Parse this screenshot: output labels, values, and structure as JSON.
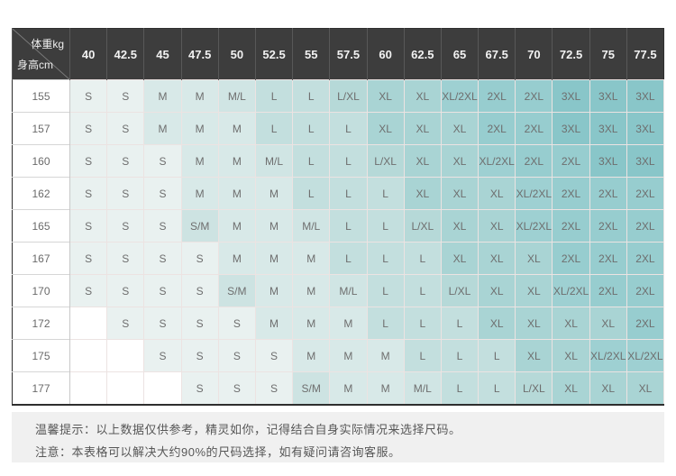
{
  "palette": {
    "header_bg": "#3d3d3d",
    "header_text": "#f2f2f2",
    "diagonal_line": "#7a7a7a",
    "grid_line": "#ece3e2",
    "notes_bg": "#f0f0f0",
    "size_colors": {
      "": "#ffffff",
      "S": "#e9f1f0",
      "S/M": "#cde3e2",
      "M": "#d8e9e8",
      "M/L": "#d0e5e4",
      "L": "#c3dfde",
      "L/XL": "#b6d9d8",
      "XL": "#a9d4d4",
      "XL/2XL": "#9ed0d2",
      "2XL": "#97cdcf",
      "3XL": "#89c6c9"
    }
  },
  "chart_data": {
    "type": "table",
    "corner": {
      "top_right": "体重kg",
      "bottom_left": "身高cm"
    },
    "columns": [
      "40",
      "42.5",
      "45",
      "47.5",
      "50",
      "52.5",
      "55",
      "57.5",
      "60",
      "62.5",
      "65",
      "67.5",
      "70",
      "72.5",
      "75",
      "77.5"
    ],
    "rows": [
      {
        "height": "155",
        "sizes": [
          "S",
          "S",
          "M",
          "M",
          "M/L",
          "L",
          "L",
          "L/XL",
          "XL",
          "XL",
          "XL/2XL",
          "2XL",
          "2XL",
          "3XL",
          "3XL",
          "3XL"
        ]
      },
      {
        "height": "157",
        "sizes": [
          "S",
          "S",
          "M",
          "M",
          "M",
          "L",
          "L",
          "L",
          "XL",
          "XL",
          "XL",
          "2XL",
          "2XL",
          "3XL",
          "3XL",
          "3XL"
        ]
      },
      {
        "height": "160",
        "sizes": [
          "S",
          "S",
          "S",
          "M",
          "M",
          "M/L",
          "L",
          "L",
          "L/XL",
          "XL",
          "XL",
          "XL/2XL",
          "2XL",
          "2XL",
          "3XL",
          "3XL"
        ]
      },
      {
        "height": "162",
        "sizes": [
          "S",
          "S",
          "S",
          "M",
          "M",
          "M",
          "L",
          "L",
          "L",
          "XL",
          "XL",
          "XL",
          "XL/2XL",
          "2XL",
          "2XL",
          "2XL"
        ]
      },
      {
        "height": "165",
        "sizes": [
          "S",
          "S",
          "S",
          "S/M",
          "M",
          "M",
          "M/L",
          "L",
          "L",
          "L/XL",
          "XL",
          "XL",
          "XL/2XL",
          "2XL",
          "2XL",
          "2XL"
        ]
      },
      {
        "height": "167",
        "sizes": [
          "S",
          "S",
          "S",
          "S",
          "M",
          "M",
          "M",
          "L",
          "L",
          "L",
          "XL",
          "XL",
          "XL",
          "2XL",
          "2XL",
          "2XL"
        ]
      },
      {
        "height": "170",
        "sizes": [
          "S",
          "S",
          "S",
          "S",
          "S/M",
          "M",
          "M",
          "M/L",
          "L",
          "L",
          "L/XL",
          "XL",
          "XL",
          "XL/2XL",
          "2XL",
          "2XL"
        ]
      },
      {
        "height": "172",
        "sizes": [
          "",
          "S",
          "S",
          "S",
          "S",
          "M",
          "M",
          "M",
          "L",
          "L",
          "L",
          "XL",
          "XL",
          "XL",
          "XL",
          "2XL"
        ]
      },
      {
        "height": "175",
        "sizes": [
          "",
          "",
          "S",
          "S",
          "S",
          "S",
          "M",
          "M",
          "M",
          "L",
          "L",
          "L",
          "XL",
          "XL",
          "XL/2XL",
          "XL/2XL"
        ]
      },
      {
        "height": "177",
        "sizes": [
          "",
          "",
          "",
          "S",
          "S",
          "S",
          "S/M",
          "M",
          "M",
          "M/L",
          "L",
          "L",
          "L/XL",
          "XL",
          "XL",
          "XL"
        ]
      }
    ]
  },
  "notes": {
    "line1": "温馨提示：以上数据仅供参考，精灵如你，记得结合自身实际情况来选择尺码。",
    "line2": "注意：本表格可以解决大约90%的尺码选择，如有疑问请咨询客服。"
  }
}
